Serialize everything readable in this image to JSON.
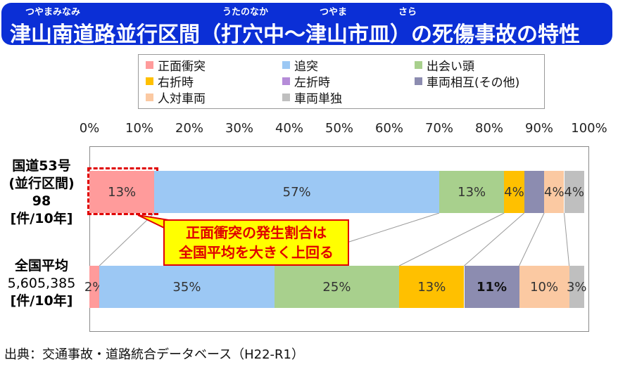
{
  "title": {
    "text": "津山南道路並行区間（打穴中～津山市皿）の死傷事故の特性",
    "ruby": [
      "つやまみなみ",
      "うたのなか",
      "つやま",
      "さら"
    ]
  },
  "chart_data": {
    "type": "bar",
    "orientation": "horizontal",
    "stacked": "percent",
    "x_ticks": [
      "0%",
      "10%",
      "20%",
      "30%",
      "40%",
      "50%",
      "60%",
      "70%",
      "80%",
      "90%",
      "100%"
    ],
    "xlim": [
      0,
      100
    ],
    "legend_position": "top",
    "categories": [
      {
        "lines": [
          "国道53号",
          "(並行区間)",
          "98",
          "[件/10年]"
        ]
      },
      {
        "lines": [
          "全国平均",
          "5,605,385",
          "[件/10年]"
        ]
      }
    ],
    "series": [
      {
        "name": "正面衝突",
        "color": "#ff9b9b",
        "values": [
          13,
          2
        ],
        "labels": [
          "13%",
          "2%"
        ]
      },
      {
        "name": "追突",
        "color": "#9cc8f4",
        "values": [
          57,
          35
        ],
        "labels": [
          "57%",
          "35%"
        ]
      },
      {
        "name": "出会い頭",
        "color": "#a8d08d",
        "values": [
          13,
          25
        ],
        "labels": [
          "13%",
          "25%"
        ]
      },
      {
        "name": "右折時",
        "color": "#ffc000",
        "values": [
          4,
          13
        ],
        "labels": [
          "4%",
          "13%"
        ]
      },
      {
        "name": "左折時",
        "color": "#b58cd8",
        "values": [
          0,
          0
        ],
        "labels": [
          "",
          ""
        ]
      },
      {
        "name": "車両相互(その他)",
        "color": "#8c8cb0",
        "values": [
          4,
          11
        ],
        "labels": [
          "",
          "11%"
        ]
      },
      {
        "name": "人対車両",
        "color": "#fbc9a2",
        "values": [
          4,
          10
        ],
        "labels": [
          "4%",
          "10%"
        ]
      },
      {
        "name": "車両単独",
        "color": "#bfbfbf",
        "values": [
          4,
          3
        ],
        "labels": [
          "4%",
          "3%"
        ]
      }
    ],
    "annotation": [
      "正面衝突の発生割合は",
      "全国平均を大きく上回る"
    ]
  },
  "source": "出典：交通事故・道路統合データベース（H22-R1）"
}
